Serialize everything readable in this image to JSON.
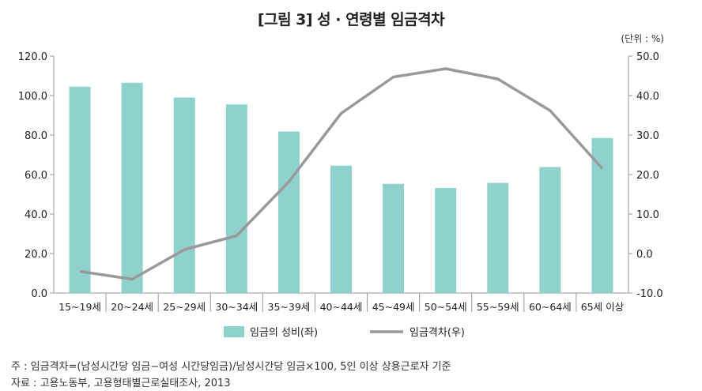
{
  "title": "[그림 3] 성 · 연령별 임금격차",
  "unit_label": "(단위 : %)",
  "notes": {
    "note1": "주 : 임금격차=(남성시간당 임금−여성 시간당임금)/남성시간당 임금×100, 5인 이상 상용근로자 기준",
    "note2": "자료 : 고용노동부, 고용형태별근로실태조사, 2013"
  },
  "chart_data": {
    "type": "bar+line",
    "title": "[그림 3] 성 · 연령별 임금격차",
    "categories": [
      "15~19세",
      "20~24세",
      "25~29세",
      "30~34세",
      "35~39세",
      "40~44세",
      "45~49세",
      "50~54세",
      "55~59세",
      "60~64세",
      "65세 이상"
    ],
    "series": [
      {
        "name": "임금의 성비(좌)",
        "type": "bar",
        "axis": "left",
        "color": "#8fd2cd",
        "values": [
          104.5,
          106.5,
          99.0,
          95.5,
          81.8,
          64.5,
          55.3,
          53.2,
          55.8,
          63.8,
          78.5
        ]
      },
      {
        "name": "임금격차(우)",
        "type": "line",
        "axis": "right",
        "color": "#999999",
        "values": [
          -4.5,
          -6.5,
          1.0,
          4.5,
          18.2,
          35.5,
          44.7,
          46.8,
          44.2,
          36.2,
          21.5
        ]
      }
    ],
    "y_left": {
      "min": 0,
      "max": 120,
      "step": 20,
      "tick_labels": [
        "0.0",
        "20.0",
        "40.0",
        "60.0",
        "80.0",
        "100.0",
        "120.0"
      ]
    },
    "y_right": {
      "min": -10,
      "max": 50,
      "step": 10,
      "tick_labels": [
        "-10.0",
        "0.0",
        "10.0",
        "20.0",
        "30.0",
        "40.0",
        "50.0"
      ]
    },
    "legend_position": "bottom-center",
    "grid": false
  }
}
